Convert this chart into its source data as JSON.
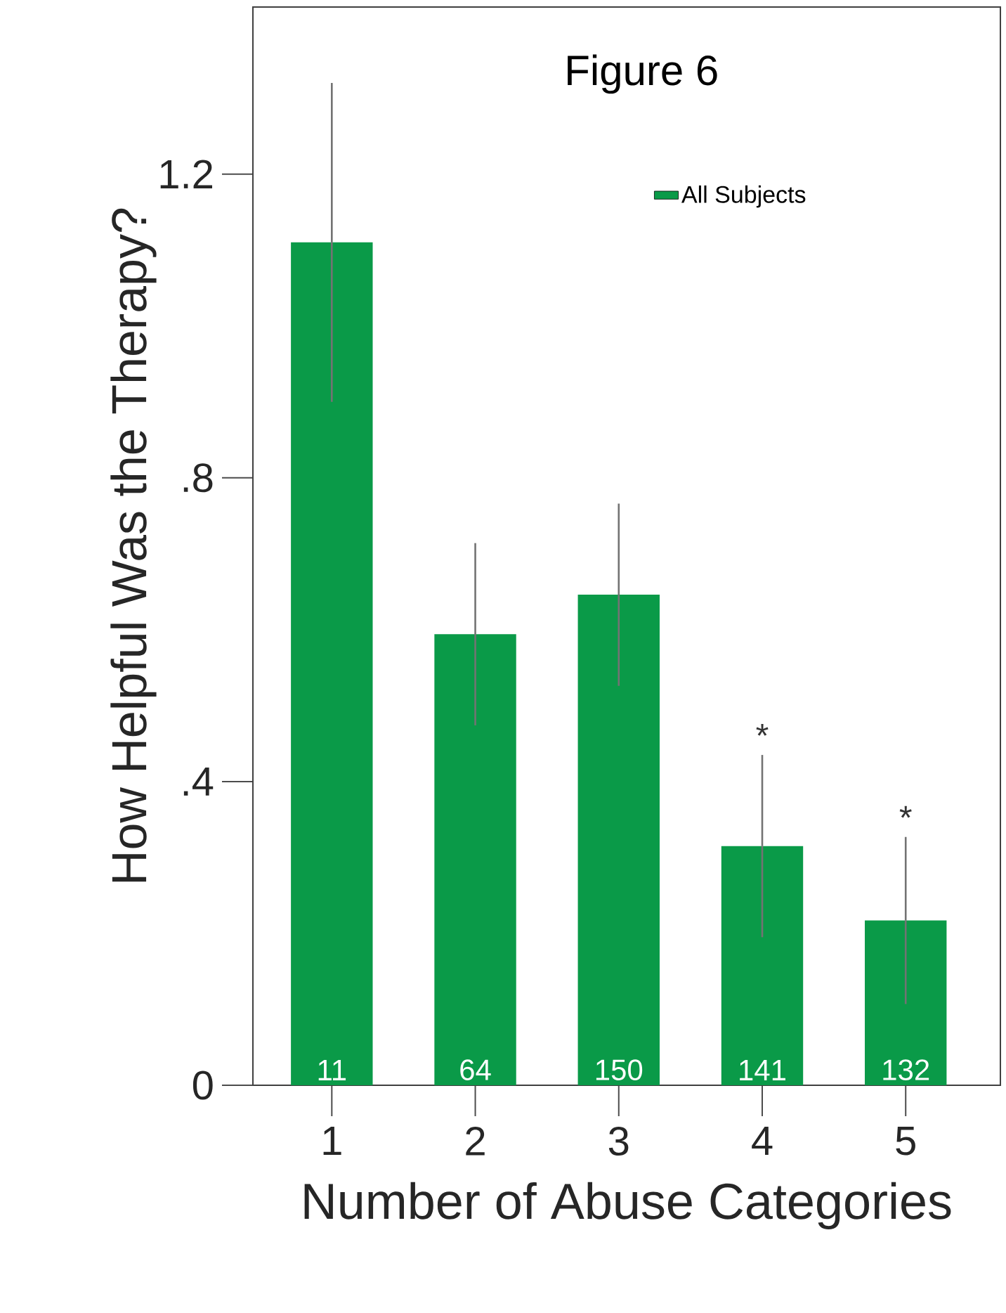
{
  "chart_data": {
    "type": "bar",
    "title": "Figure 6",
    "xlabel": "Number of Abuse Categories",
    "ylabel": "How Helpful Was the Therapy?",
    "categories": [
      "1",
      "2",
      "3",
      "4",
      "5"
    ],
    "series": [
      {
        "name": "All Subjects",
        "color": "#0a9a48",
        "values": [
          1.11,
          0.594,
          0.646,
          0.315,
          0.217
        ],
        "errors": [
          0.21,
          0.12,
          0.12,
          0.12,
          0.11
        ]
      }
    ],
    "ylim": [
      0,
      1.42
    ],
    "yticks": [
      {
        "value": 0,
        "label": "0"
      },
      {
        "value": 0.4,
        "label": ".4"
      },
      {
        "value": 0.8,
        "label": ".8"
      },
      {
        "value": 1.2,
        "label": "1.2"
      }
    ],
    "annotations": [
      "11",
      "64",
      "150",
      "141",
      "132",
      "*",
      "*"
    ],
    "legend": "top right",
    "grid": false
  }
}
